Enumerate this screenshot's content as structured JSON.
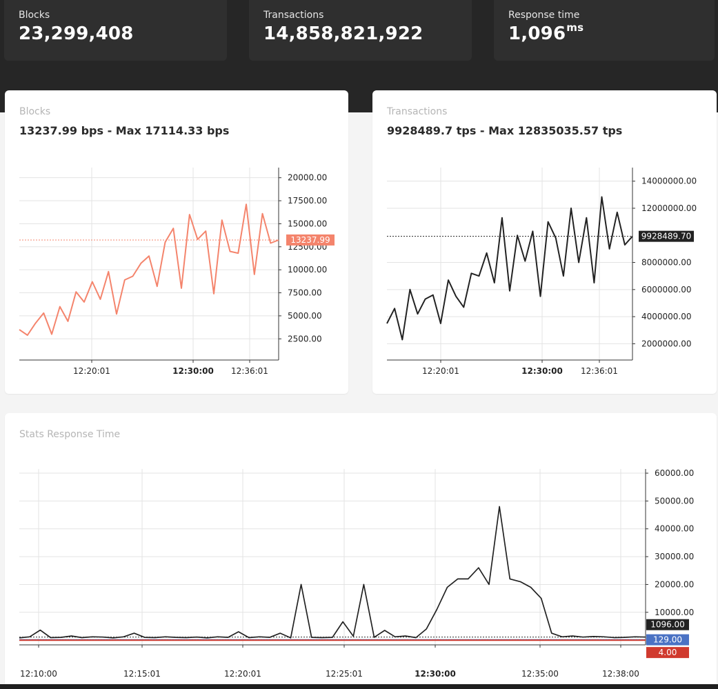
{
  "stats": [
    {
      "label": "Blocks",
      "value": "23,299,408",
      "unit": ""
    },
    {
      "label": "Transactions",
      "value": "14,858,821,922",
      "unit": ""
    },
    {
      "label": "Response time",
      "value": "1,096",
      "unit": "ms"
    }
  ],
  "blocks_panel": {
    "title": "Blocks",
    "subtitle": "13237.99 bps - Max 17114.33 bps"
  },
  "tx_panel": {
    "title": "Transactions",
    "subtitle": "9928489.7 tps - Max 12835035.57 tps"
  },
  "resp_panel": {
    "title": "Stats Response Time"
  },
  "colors": {
    "blocks_line": "#f4846c",
    "tx_line": "#222222",
    "resp_line": "#222222",
    "blue_line": "#4a72c4",
    "red_line": "#d03a2e"
  },
  "chart_data": [
    {
      "type": "line",
      "title": "Blocks",
      "x_ticks": [
        "12:20:01",
        "12:30:00",
        "12:36:01"
      ],
      "x_tick_bold": [
        false,
        true,
        false
      ],
      "y_ticks": [
        "20000.00",
        "17500.00",
        "15000.00",
        "12500.00",
        "10000.00",
        "7500.00",
        "5000.00",
        "2500.00"
      ],
      "ylim": [
        200,
        21100
      ],
      "current_marker": {
        "label": "13237.99",
        "value": 13237.99
      },
      "series": [
        {
          "values": [
            3500,
            2900,
            4200,
            5300,
            3000,
            6000,
            4400,
            7600,
            6500,
            8700,
            6800,
            9800,
            5200,
            8900,
            9300,
            10700,
            11500,
            8200,
            13000,
            14500,
            8000,
            16000,
            13300,
            14200,
            7400,
            15400,
            12000,
            11800,
            17114.33,
            9500,
            16100,
            12900,
            13237.99
          ]
        }
      ]
    },
    {
      "type": "line",
      "title": "Transactions",
      "x_ticks": [
        "12:20:01",
        "12:30:00",
        "12:36:01"
      ],
      "x_tick_bold": [
        false,
        true,
        false
      ],
      "y_ticks": [
        "14000000.00",
        "12000000.00",
        "8000000.00",
        "6000000.00",
        "4000000.00",
        "2000000.00"
      ],
      "ylim": [
        800000,
        15000000
      ],
      "current_marker": {
        "label": "9928489.70",
        "value": 9928489.7
      },
      "series": [
        {
          "values": [
            3500000,
            4600000,
            2300000,
            6000000,
            4200000,
            5300000,
            5600000,
            3500000,
            6700000,
            5500000,
            4700000,
            7200000,
            7000000,
            8700000,
            6500000,
            11300000,
            5900000,
            10000000,
            8100000,
            10300000,
            5500000,
            11000000,
            9800000,
            7000000,
            12000000,
            8000000,
            11300000,
            6500000,
            12835035.57,
            9000000,
            11700000,
            9300000,
            9928489.7
          ]
        }
      ]
    },
    {
      "type": "line",
      "title": "Stats Response Time",
      "x_ticks": [
        "12:10:00",
        "12:15:01",
        "12:20:01",
        "12:25:01",
        "12:30:00",
        "12:35:00",
        "12:38:00"
      ],
      "x_tick_bold": [
        false,
        false,
        false,
        false,
        true,
        false,
        false
      ],
      "y_ticks": [
        "60000.00",
        "50000.00",
        "40000.00",
        "30000.00",
        "20000.00",
        "10000.00"
      ],
      "ylim": [
        -1700,
        61500
      ],
      "markers": [
        {
          "label": "1096.00",
          "value": 1096
        },
        {
          "label": "129.00",
          "value": 129
        },
        {
          "label": "4.00",
          "value": 4
        }
      ],
      "series": [
        {
          "values": [
            800,
            1200,
            3600,
            900,
            1000,
            1500,
            900,
            1200,
            1100,
            800,
            1200,
            2500,
            1000,
            900,
            1200,
            1000,
            900,
            1100,
            800,
            1200,
            1000,
            3000,
            900,
            1200,
            1000,
            2500,
            800,
            20000,
            1000,
            900,
            1000,
            6600,
            1400,
            20000,
            1000,
            3500,
            1200,
            1500,
            900,
            4000,
            11000,
            19000,
            22000,
            22000,
            26000,
            20000,
            48000,
            22000,
            21000,
            19000,
            15000,
            2500,
            1200,
            1500,
            1100,
            1300,
            1200,
            900,
            1000,
            1200,
            1096
          ]
        },
        {
          "values": [
            129,
            129
          ]
        },
        {
          "values": [
            4,
            4
          ]
        }
      ]
    }
  ]
}
